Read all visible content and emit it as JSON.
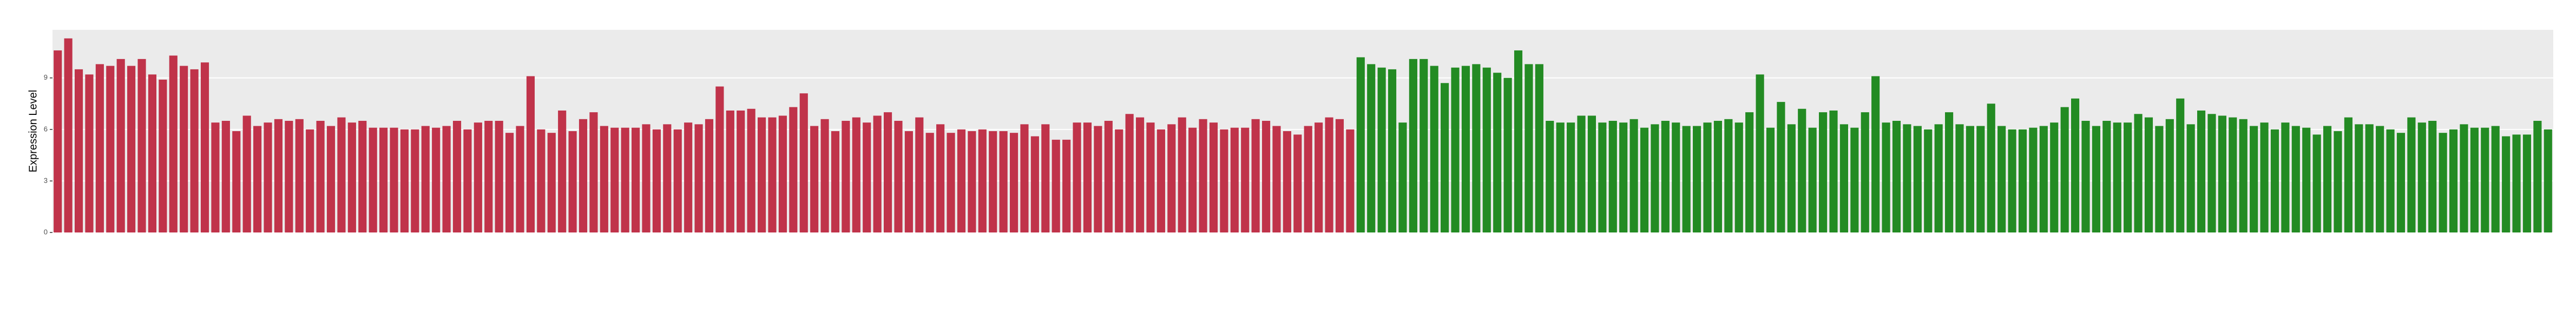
{
  "chart_data": {
    "type": "bar",
    "y_label": "Expression Level",
    "ylim": [
      0,
      11.8
    ],
    "yticks": [
      0,
      3,
      6,
      9
    ],
    "grid": true,
    "series": [
      {
        "color": "#c0334a",
        "categories": [
          null,
          null,
          null,
          null,
          null,
          null,
          null,
          null,
          null,
          null,
          null,
          null,
          null,
          null,
          null,
          null,
          null,
          null,
          null,
          null,
          null,
          null,
          null,
          null,
          null,
          null,
          null,
          null,
          null,
          null,
          null,
          null,
          null,
          null,
          null,
          null,
          null,
          null,
          null,
          null,
          null,
          null,
          null,
          null,
          null,
          null,
          null,
          null,
          null,
          null,
          null,
          null,
          null,
          null,
          null,
          null,
          null,
          null,
          null,
          null,
          null,
          null,
          null,
          null,
          null,
          null,
          null,
          null,
          null,
          null,
          null,
          null,
          null,
          null,
          null,
          null,
          null,
          null,
          null,
          null,
          null,
          null,
          null,
          null,
          null,
          null,
          null,
          null,
          null,
          null,
          null,
          null,
          null,
          null,
          null,
          null,
          null,
          null,
          null,
          null,
          null,
          null,
          null,
          null,
          null,
          null,
          null,
          null,
          null,
          null,
          null,
          null,
          null,
          null,
          null,
          null,
          null,
          null,
          null,
          null,
          null,
          null,
          null,
          null
        ],
        "values": [
          10.6,
          11.3,
          9.5,
          9.2,
          9.8,
          9.7,
          10.1,
          9.7,
          10.1,
          9.2,
          8.9,
          10.3,
          9.7,
          9.5,
          9.9,
          6.4,
          6.5,
          5.9,
          6.8,
          6.2,
          6.4,
          6.6,
          6.5,
          6.6,
          6.0,
          6.5,
          6.2,
          6.7,
          6.4,
          6.5,
          6.1,
          6.1,
          6.1,
          6.0,
          6.0,
          6.2,
          6.1,
          6.2,
          6.5,
          6.0,
          6.4,
          6.5,
          6.5,
          5.8,
          6.2,
          9.1,
          6.0,
          5.8,
          7.1,
          5.9,
          6.6,
          7.0,
          6.2,
          6.1,
          6.1,
          6.1,
          6.3,
          6.0,
          6.3,
          6.0,
          6.4,
          6.3,
          6.6,
          8.5,
          7.1,
          7.1,
          7.2,
          6.7,
          6.7,
          6.8,
          7.3,
          8.1,
          6.2,
          6.6,
          5.9,
          6.5,
          6.7,
          6.4,
          6.8,
          7.0,
          6.5,
          5.9,
          6.7,
          5.8,
          6.3,
          5.8,
          6.0,
          5.9,
          6.0,
          5.9,
          5.9,
          5.8,
          6.3,
          5.6,
          6.3,
          5.4,
          5.4,
          6.4,
          6.4,
          6.2,
          6.5,
          6.0,
          6.9,
          6.7,
          6.4,
          6.0,
          6.3,
          6.7,
          6.1,
          6.6,
          6.4,
          6.0,
          6.1,
          6.1,
          6.6,
          6.5,
          6.2,
          5.9,
          5.7,
          6.2,
          6.4,
          6.7,
          6.6,
          6.0
        ]
      },
      {
        "color": "#238b23",
        "categories": [
          null,
          null,
          null,
          null,
          null,
          null,
          null,
          null,
          null,
          null,
          null,
          null,
          null,
          null,
          null,
          null,
          null,
          null,
          null,
          null,
          null,
          null,
          null,
          null,
          null,
          null,
          null,
          null,
          null,
          null,
          null,
          null,
          null,
          null,
          null,
          null,
          null,
          null,
          null,
          null,
          null,
          null,
          null,
          null,
          null,
          null,
          null,
          null,
          null,
          null,
          null,
          null,
          null,
          null,
          null,
          null,
          null,
          null,
          null,
          null,
          null,
          null,
          null,
          null,
          null,
          null,
          null,
          null,
          null,
          null,
          null,
          null,
          null,
          null,
          null,
          null,
          null,
          null,
          null,
          null,
          null,
          null,
          null,
          null,
          null,
          null,
          null,
          null,
          null,
          null,
          null,
          null,
          null,
          null,
          null,
          null,
          null,
          null,
          null,
          null,
          null,
          null,
          null,
          null,
          null,
          null,
          null,
          null,
          null,
          null,
          null,
          null,
          null,
          null
        ],
        "values": [
          10.2,
          9.8,
          9.6,
          9.5,
          6.4,
          10.1,
          10.1,
          9.7,
          8.7,
          9.6,
          9.7,
          9.8,
          9.6,
          9.3,
          9.0,
          10.6,
          9.8,
          9.8,
          6.5,
          6.4,
          6.4,
          6.8,
          6.8,
          6.4,
          6.5,
          6.4,
          6.6,
          6.1,
          6.3,
          6.5,
          6.4,
          6.2,
          6.2,
          6.4,
          6.5,
          6.6,
          6.4,
          7.0,
          9.2,
          6.1,
          7.6,
          6.3,
          7.2,
          6.1,
          7.0,
          7.1,
          6.3,
          6.1,
          7.0,
          9.1,
          6.4,
          6.5,
          6.3,
          6.2,
          6.0,
          6.3,
          7.0,
          6.3,
          6.2,
          6.2,
          7.5,
          6.2,
          6.0,
          6.0,
          6.1,
          6.2,
          6.4,
          7.3,
          7.8,
          6.5,
          6.2,
          6.5,
          6.4,
          6.4,
          6.9,
          6.7,
          6.2,
          6.6,
          7.8,
          6.3,
          7.1,
          6.9,
          6.8,
          6.7,
          6.6,
          6.2,
          6.4,
          6.0,
          6.4,
          6.2,
          6.1,
          5.7,
          6.2,
          5.9,
          6.7,
          6.3,
          6.3,
          6.2,
          6.0,
          5.8,
          6.7,
          6.4,
          6.5,
          5.8,
          6.0,
          6.3,
          6.1,
          6.1,
          6.2,
          5.6,
          5.7,
          5.7,
          6.5,
          6.0
        ]
      }
    ]
  }
}
